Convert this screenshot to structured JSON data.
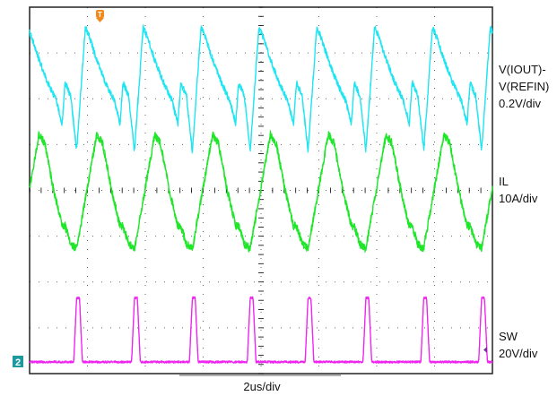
{
  "chart_data": {
    "type": "line",
    "title": "",
    "x_scale": "2us/div",
    "grid": true,
    "trigger_marker": "T",
    "ground_marker": "2",
    "series": [
      {
        "name": "V(IOUT)-V(REFIN)",
        "label_lines": [
          "V(IOUT)-",
          "V(REFIN)",
          "0.2V/div"
        ],
        "color": "#1fe5f2",
        "x": [
          0.0,
          0.1,
          0.2,
          0.35,
          0.42,
          0.55,
          0.7,
          0.85,
          0.95
        ],
        "y": [
          -0.02,
          -0.08,
          -0.32,
          0.22,
          0.18,
          0.08,
          -0.02,
          -0.1,
          -0.2
        ]
      },
      {
        "name": "IL",
        "label_lines": [
          "IL",
          "10A/div"
        ],
        "color": "#1fe629",
        "x": [
          0.0,
          0.1,
          0.2,
          0.55,
          0.65,
          0.8,
          0.95
        ],
        "y": [
          -10,
          -14,
          -15,
          10,
          8,
          -2,
          -10
        ]
      },
      {
        "name": "SW",
        "label_lines": [
          "SW",
          "20V/div"
        ],
        "color": "#f024f0",
        "x": [
          0.0,
          0.15,
          0.2,
          0.25,
          0.3,
          0.95
        ],
        "y": [
          0,
          0,
          28,
          28,
          0,
          0
        ]
      }
    ]
  }
}
